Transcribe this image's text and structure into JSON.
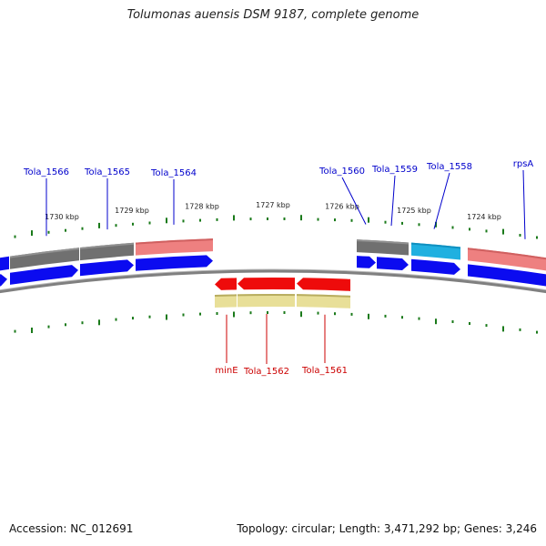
{
  "header": {
    "title": "Tolumonas auensis DSM 9187, complete genome"
  },
  "footer": {
    "accession": "Accession: NC_012691",
    "summary": "Topology: circular; Length: 3,471,292 bp; Genes: 3,246"
  },
  "colors": {
    "cds_forward": "#0b0bf0",
    "cds_reverse": "#ee0b0b",
    "gene_gray": "#707070",
    "gene_pink": "#ee8080",
    "gene_cyan": "#20b0e0",
    "gene_khaki": "#e8df98",
    "tick": "#1a7a1a",
    "label_forward": "#0000cc",
    "label_reverse": "#cc0000"
  },
  "scale": {
    "ticks": [
      "1730 kbp",
      "1729 kbp",
      "1728 kbp",
      "1727 kbp",
      "1726 kbp",
      "1725 kbp",
      "1724 kbp"
    ]
  },
  "forward_labels": [
    "Tola_1566",
    "Tola_1565",
    "Tola_1564",
    "Tola_1560",
    "Tola_1559",
    "Tola_1558",
    "rpsA"
  ],
  "reverse_labels": [
    "minE",
    "Tola_1562",
    "Tola_1561"
  ]
}
